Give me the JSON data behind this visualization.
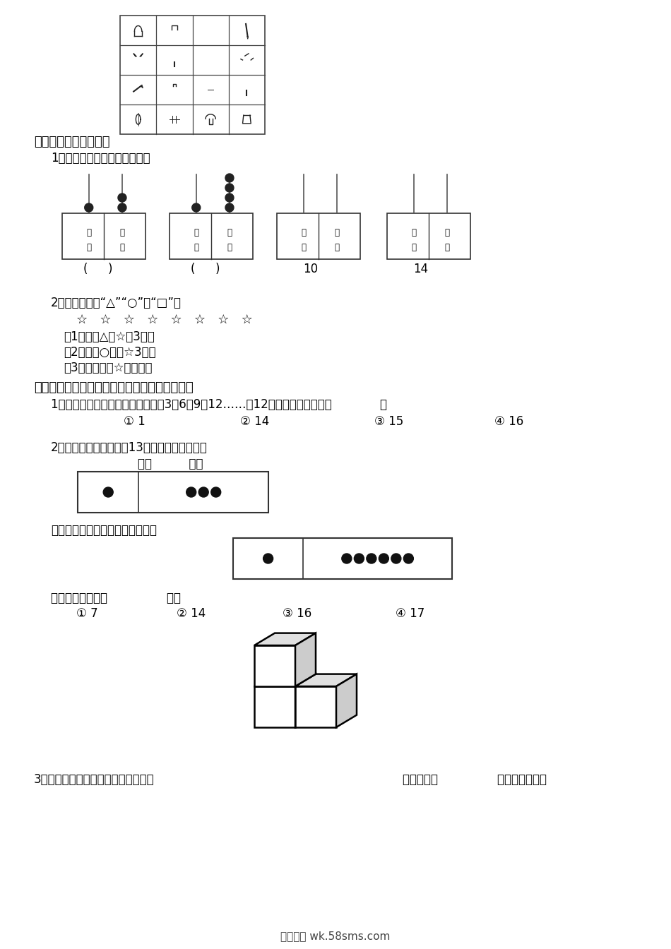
{
  "bg_color": "#ffffff",
  "title_section5": "五、写一写，画一画。",
  "sub1_section5": "1、看珠子写数，看数画珠子。",
  "sub2_section5": "2、根据要求画“△”“○”和“□”。",
  "stars_row": "☆   ☆   ☆   ☆   ☆   ☆   ☆   ☆",
  "cond1": "（1）画的△比☆多3个。",
  "cond2": "（2）画的○比少☆3个。",
  "cond3": "（3）画的口和☆同样多。",
  "title_section6": "六、选一选。（将正确答案的序号填在括号里）",
  "q1": "1、苗苗小朋友制成这样一排数字：3、6、9、12……，12后面的第一个数是（             ）",
  "q1_opt1": "① 1",
  "q1_opt2": "② 14",
  "q1_opt3": "③ 15",
  "q1_opt4": "④ 16",
  "q2_intro": "2、奇奇用算珠表示数字13，它是这样表示的：",
  "q2_label": "十位          个位",
  "q2_dingding": "丁丁用同样的方法用算珠表示数：",
  "q2_answer_prefix": "丁丁表示的数是（                ）。",
  "q2_opt1": "① 7",
  "q2_opt2": "② 14",
  "q2_opt3": "③ 16",
  "q2_opt4": "④ 17",
  "q3": "3、小林用小正方体摆成了这样的形状",
  "q3_end": "，他用了（                ）块小正方体。",
  "footer": "五八文库 wk.58sms.com"
}
